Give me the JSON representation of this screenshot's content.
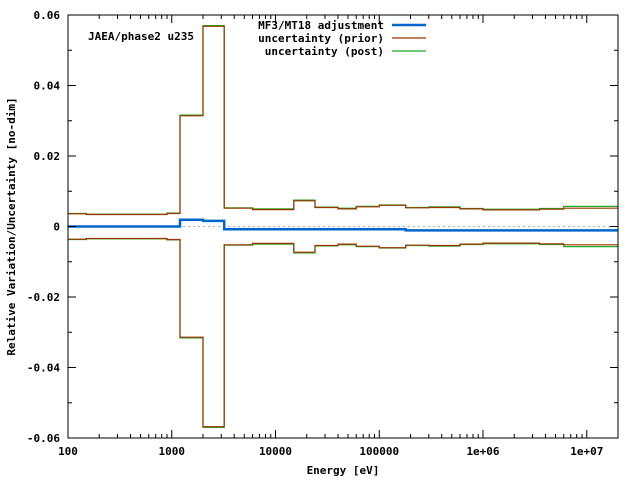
{
  "chart_data": {
    "type": "line",
    "annotation": "JAEA/phase2 u235",
    "xlabel": "Energy [eV]",
    "ylabel": "Relative Variation/Uncertainty [no-dim]",
    "x_scale": "log",
    "xlim": [
      100,
      20000000
    ],
    "ylim": [
      -0.06,
      0.06
    ],
    "x_ticks": [
      100,
      1000,
      10000,
      100000,
      1000000,
      10000000
    ],
    "x_tick_labels": [
      "100",
      "1000",
      "10000",
      "100000",
      "1e+06",
      "1e+07"
    ],
    "y_ticks": [
      -0.06,
      -0.04,
      -0.02,
      0,
      0.02,
      0.04,
      0.06
    ],
    "y_tick_labels": [
      "-0.06",
      "-0.04",
      "-0.02",
      "0",
      "0.02",
      "0.04",
      "0.06"
    ],
    "zero_line": true,
    "legend_position": "top-center",
    "bin_edges": [
      100,
      150,
      900,
      1200,
      2000,
      3200,
      6000,
      15000,
      24000,
      40000,
      60000,
      100000,
      180000,
      300000,
      600000,
      1000000,
      3500000,
      6000000,
      20000000
    ],
    "series": [
      {
        "name": "MF3/MT18 adjustment",
        "color": "#0066cc",
        "line_width": 2.5,
        "mirror": false,
        "values": [
          0.0,
          0.0,
          0.0,
          0.0019,
          0.0016,
          -0.0008,
          -0.0008,
          -0.0008,
          -0.0008,
          -0.0008,
          -0.0008,
          -0.0008,
          -0.0011,
          -0.0011,
          -0.0011,
          -0.0011,
          -0.0011,
          -0.0011
        ]
      },
      {
        "name": "uncertainty (prior)",
        "color": "#993300",
        "line_width": 1.2,
        "mirror": true,
        "values": [
          0.0036,
          0.0034,
          0.0037,
          0.0314,
          0.0568,
          0.0052,
          0.0048,
          0.0073,
          0.0054,
          0.005,
          0.0056,
          0.006,
          0.0053,
          0.0054,
          0.005,
          0.0047,
          0.0049,
          0.0052
        ]
      },
      {
        "name": "uncertainty (post)",
        "color": "#22aa22",
        "line_width": 1.2,
        "mirror": true,
        "values": [
          0.0037,
          0.0035,
          0.0038,
          0.0316,
          0.057,
          0.0053,
          0.005,
          0.0075,
          0.0055,
          0.0052,
          0.0057,
          0.0061,
          0.0054,
          0.0056,
          0.0051,
          0.0049,
          0.0051,
          0.0057
        ]
      }
    ]
  }
}
